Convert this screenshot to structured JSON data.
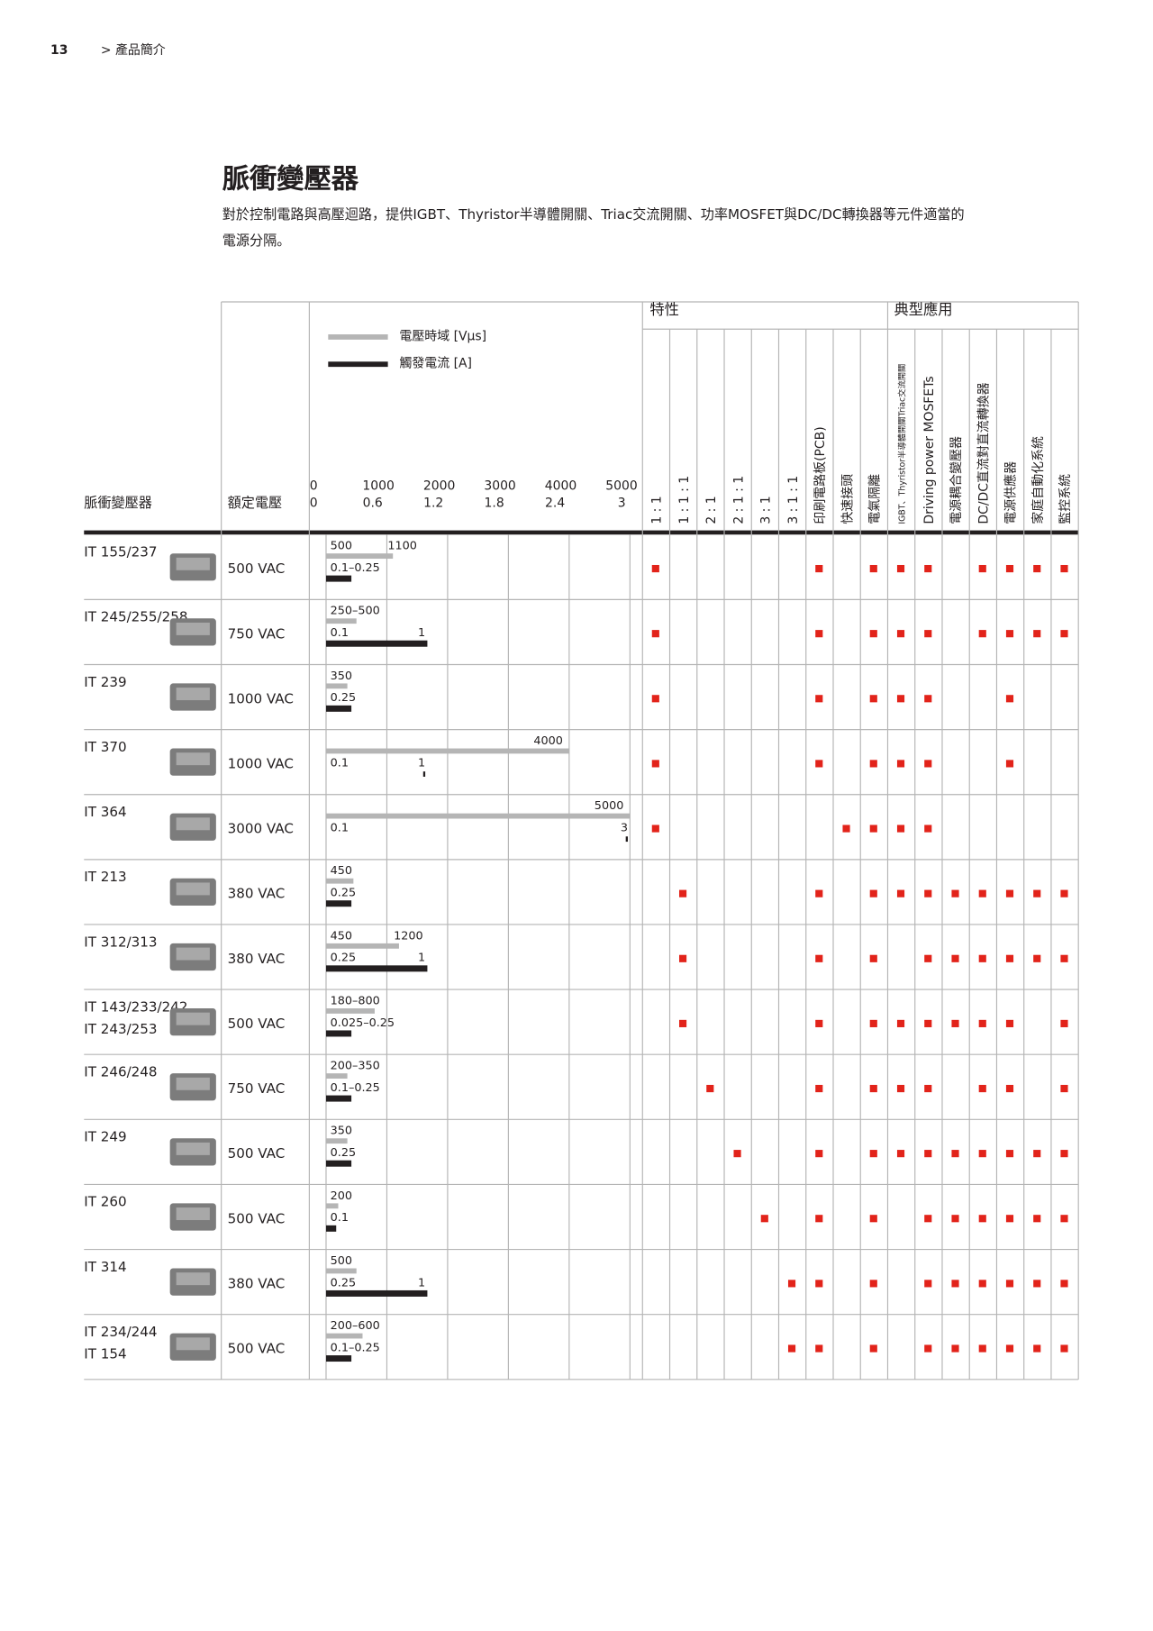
{
  "page_number": "13",
  "breadcrumb": "> 產品簡介",
  "title": "脈衝變壓器",
  "description": [
    "對於控制電路與高壓迴路，提供IGBT、Thyristor半導體開關、Triac交流開關、功率MOSFET與DC/DC轉換器等元件適當的",
    "電源分隔。"
  ],
  "table": {
    "header": {
      "product": "脈衝變壓器",
      "voltage": "額定電壓",
      "features": "特性",
      "applications": "典型應用"
    },
    "legend": {
      "voltage_time": "電壓時域 [Vμs]",
      "trigger_current": "觸發電流 [A]"
    },
    "vt_lim": [
      0,
      5000
    ],
    "vt_ticks": [
      0,
      1000,
      2000,
      3000,
      4000,
      5000
    ],
    "ic_lim": [
      0,
      3
    ],
    "ic_ticks": [
      0,
      0.6,
      1.2,
      1.8,
      2.4,
      3
    ],
    "columns": [
      "1 : 1",
      "1 : 1 : 1",
      "2 : 1",
      "2 : 1 : 1",
      "3 : 1",
      "3 : 1 : 1",
      "印刷電路板(PCB)",
      "快速接頭",
      "電氣隔離",
      "IGBT、Thyristor半導體開關Triac交流開關",
      "Driving power MOSFETs",
      "電源耦合變壓器",
      "DC/DC直流對直流轉換器",
      "電源供應器",
      "家庭自動化系統",
      "監控系統"
    ],
    "rows": [
      {
        "names": [
          "IT 155/237"
        ],
        "voltage": "500 VAC",
        "vt": [
          500,
          1100
        ],
        "ic": [
          {
            "value": 0.25,
            "label": "0.1–0.25"
          }
        ],
        "marks": [
          true,
          false,
          false,
          false,
          false,
          false,
          true,
          false,
          true,
          true,
          true,
          false,
          true,
          true,
          true,
          true
        ]
      },
      {
        "names": [
          "IT 245/255/258"
        ],
        "voltage": "750 VAC",
        "vt": [
          {
            "value": 500,
            "label": "250–500"
          }
        ],
        "ic": [
          0.1,
          1
        ],
        "marks": [
          true,
          false,
          false,
          false,
          false,
          false,
          true,
          false,
          true,
          true,
          true,
          false,
          true,
          true,
          true,
          true
        ]
      },
      {
        "names": [
          "IT 239"
        ],
        "voltage": "1000 VAC",
        "vt": [
          350
        ],
        "ic": [
          0.25
        ],
        "marks": [
          true,
          false,
          false,
          false,
          false,
          false,
          true,
          false,
          true,
          true,
          true,
          false,
          false,
          true,
          false,
          false
        ]
      },
      {
        "names": [
          "IT 370"
        ],
        "voltage": "1000 VAC",
        "vt": [
          4000
        ],
        "ic": [
          0.1,
          1
        ],
        "ic_marker": "tick",
        "marks": [
          true,
          false,
          false,
          false,
          false,
          false,
          true,
          false,
          true,
          true,
          true,
          false,
          false,
          true,
          false,
          false
        ]
      },
      {
        "names": [
          "IT 364"
        ],
        "voltage": "3000 VAC",
        "vt": [
          5000
        ],
        "ic": [
          0.1,
          3
        ],
        "ic_marker": "tick",
        "marks": [
          true,
          false,
          false,
          false,
          false,
          false,
          false,
          true,
          true,
          true,
          true,
          false,
          false,
          false,
          false,
          false
        ]
      },
      {
        "names": [
          "IT 213"
        ],
        "voltage": "380 VAC",
        "vt": [
          450
        ],
        "ic": [
          0.25
        ],
        "marks": [
          false,
          true,
          false,
          false,
          false,
          false,
          true,
          false,
          true,
          true,
          true,
          true,
          true,
          true,
          true,
          true
        ]
      },
      {
        "names": [
          "IT 312/313"
        ],
        "voltage": "380 VAC",
        "vt": [
          450,
          1200
        ],
        "ic": [
          0.25,
          1
        ],
        "marks": [
          false,
          true,
          false,
          false,
          false,
          false,
          true,
          false,
          true,
          false,
          true,
          true,
          true,
          true,
          true,
          true
        ]
      },
      {
        "names": [
          "IT 143/233/242",
          "IT 243/253"
        ],
        "voltage": "500 VAC",
        "vt": [
          {
            "value": 800,
            "label": "180–800"
          }
        ],
        "ic": [
          {
            "value": 0.25,
            "label": "0.025–0.25"
          }
        ],
        "marks": [
          false,
          true,
          false,
          false,
          false,
          false,
          true,
          false,
          true,
          true,
          true,
          true,
          true,
          true,
          false,
          true
        ]
      },
      {
        "names": [
          "IT 246/248"
        ],
        "voltage": "750 VAC",
        "vt": [
          {
            "value": 350,
            "label": "200–350"
          }
        ],
        "ic": [
          {
            "value": 0.25,
            "label": "0.1–0.25"
          }
        ],
        "marks": [
          false,
          false,
          true,
          false,
          false,
          false,
          true,
          false,
          true,
          true,
          true,
          false,
          true,
          true,
          false,
          true
        ]
      },
      {
        "names": [
          "IT 249"
        ],
        "voltage": "500 VAC",
        "vt": [
          350
        ],
        "ic": [
          0.25
        ],
        "marks": [
          false,
          false,
          false,
          true,
          false,
          false,
          true,
          false,
          true,
          true,
          true,
          true,
          true,
          true,
          true,
          true
        ]
      },
      {
        "names": [
          "IT 260"
        ],
        "voltage": "500 VAC",
        "vt": [
          200
        ],
        "ic": [
          0.1
        ],
        "marks": [
          false,
          false,
          false,
          false,
          true,
          false,
          true,
          false,
          true,
          false,
          true,
          true,
          true,
          true,
          true,
          true
        ]
      },
      {
        "names": [
          "IT 314"
        ],
        "voltage": "380 VAC",
        "vt": [
          500
        ],
        "ic": [
          0.25,
          1
        ],
        "marks": [
          false,
          false,
          false,
          false,
          false,
          true,
          true,
          false,
          true,
          false,
          true,
          true,
          true,
          true,
          true,
          true
        ]
      },
      {
        "names": [
          "IT 234/244",
          "IT 154"
        ],
        "voltage": "500 VAC",
        "vt": [
          {
            "value": 600,
            "label": "200–600"
          }
        ],
        "ic": [
          {
            "value": 0.25,
            "label": "0.1–0.25"
          }
        ],
        "marks": [
          false,
          false,
          false,
          false,
          false,
          true,
          true,
          false,
          true,
          false,
          true,
          true,
          true,
          true,
          true,
          true
        ]
      }
    ]
  }
}
